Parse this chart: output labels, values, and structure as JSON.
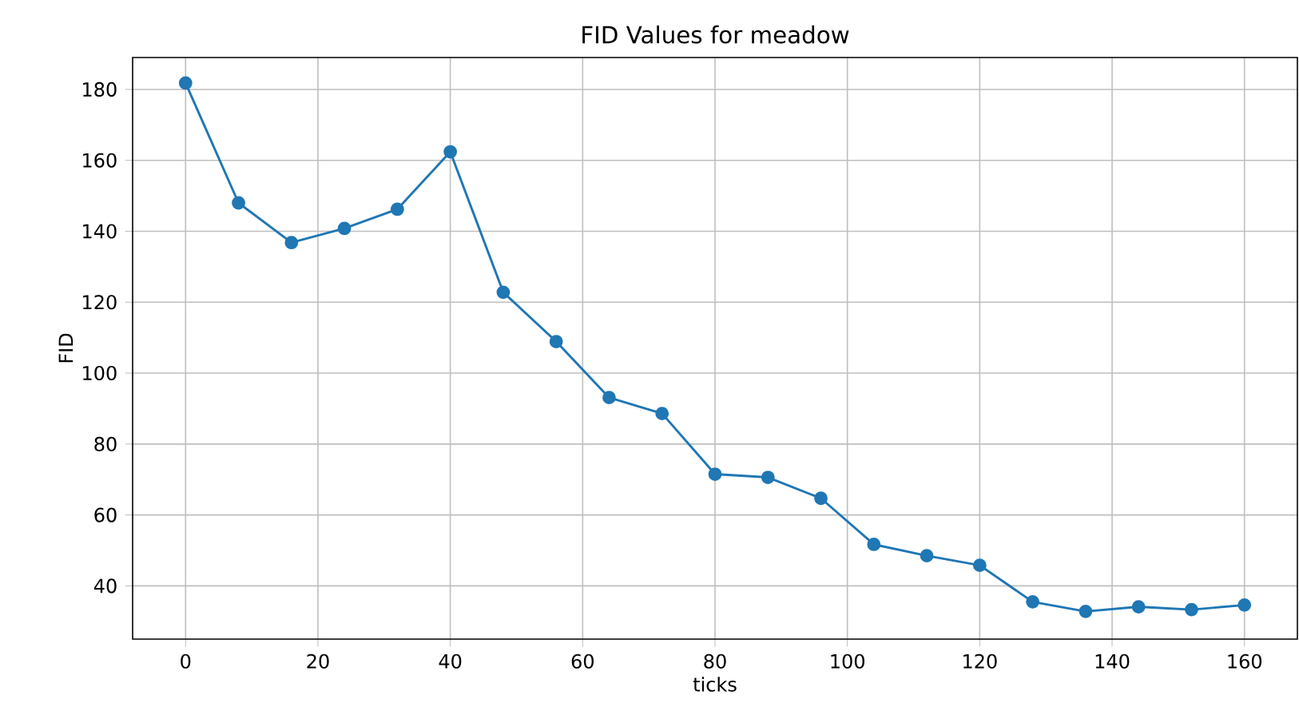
{
  "chart_data": {
    "type": "line",
    "title": "FID Values for meadow",
    "xlabel": "ticks",
    "ylabel": "FID",
    "x": [
      0,
      8,
      16,
      24,
      32,
      40,
      48,
      56,
      64,
      72,
      80,
      88,
      96,
      104,
      112,
      120,
      128,
      136,
      144,
      152,
      160
    ],
    "series": [
      {
        "color": "#1f77b4",
        "values": [
          181.8,
          148,
          136.8,
          140.8,
          146.2,
          162.4,
          122.8,
          108.9,
          93.1,
          88.6,
          71.5,
          70.6,
          64.7,
          51.7,
          48.5,
          45.8,
          35.5,
          32.8,
          34.1,
          33.3,
          34.6
        ]
      }
    ],
    "xlim": [
      -8,
      168
    ],
    "ylim": [
      25,
      189
    ],
    "xticks": [
      0,
      20,
      40,
      60,
      80,
      100,
      120,
      140,
      160
    ],
    "yticks": [
      40,
      60,
      80,
      100,
      120,
      140,
      160,
      180
    ],
    "grid": true,
    "marker": "circle",
    "line_style": "solid"
  }
}
